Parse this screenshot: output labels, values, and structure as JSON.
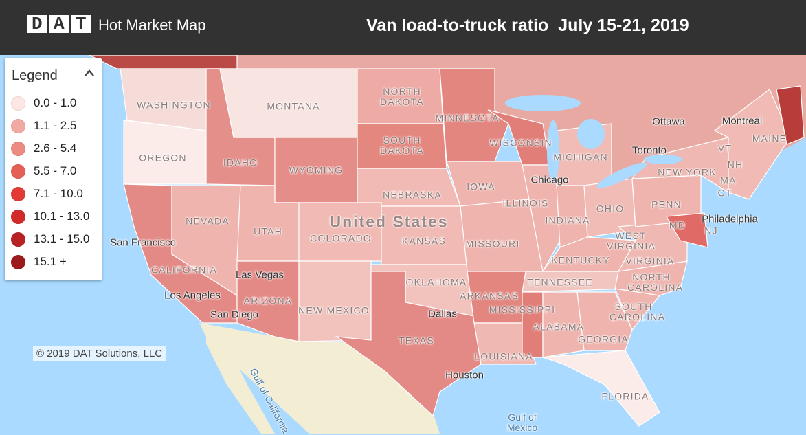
{
  "header": {
    "logo": "DAT",
    "app_name": "Hot Market Map",
    "title": "Van load-to-truck ratio  July 15-21, 2019"
  },
  "legend": {
    "title": "Legend",
    "items": [
      {
        "label": "0.0 - 1.0",
        "color": "#fde6e3"
      },
      {
        "label": "1.1 - 2.5",
        "color": "#f2a9a3"
      },
      {
        "label": "2.6 - 5.4",
        "color": "#ec8a84"
      },
      {
        "label": "5.5 - 7.0",
        "color": "#e65f57"
      },
      {
        "label": "7.1 - 10.0",
        "color": "#e33a35"
      },
      {
        "label": "10.1 - 13.0",
        "color": "#d12c2a"
      },
      {
        "label": "13.1 - 15.0",
        "color": "#b92224"
      },
      {
        "label": "15.1 +",
        "color": "#9c1a1c"
      }
    ]
  },
  "map": {
    "country_label": "United States",
    "states": [
      "WASHINGTON",
      "OREGON",
      "MONTANA",
      "IDAHO",
      "WYOMING",
      "NORTH DAKOTA",
      "SOUTH DAKOTA",
      "MINNESOTA",
      "WISCONSIN",
      "MICHIGAN",
      "IOWA",
      "NEBRASKA",
      "NEVADA",
      "UTAH",
      "COLORADO",
      "KANSAS",
      "MISSOURI",
      "ILLINOIS",
      "INDIANA",
      "OHIO",
      "CALIFORNIA",
      "ARIZONA",
      "NEW MEXICO",
      "OKLAHOMA",
      "ARKANSAS",
      "TENNESSEE",
      "KENTUCKY",
      "WEST VIRGINIA",
      "VIRGINIA",
      "NORTH CAROLINA",
      "SOUTH CAROLINA",
      "GEORGIA",
      "ALABAMA",
      "MISSISSIPPI",
      "LOUISIANA",
      "TEXAS",
      "FLORIDA",
      "PENN",
      "NEW YORK",
      "MAINE",
      "VT",
      "NH",
      "MA",
      "CT",
      "NJ",
      "MD"
    ],
    "cities": [
      "San Francisco",
      "Las Vegas",
      "Los Angeles",
      "San Diego",
      "Chicago",
      "Toronto",
      "Ottawa",
      "Montreal",
      "Philadelphia",
      "Dallas",
      "Houston"
    ],
    "water": [
      "Gulf of California",
      "Gulf of Mexico"
    ]
  },
  "footer": {
    "copyright": "© 2019 DAT Solutions, LLC"
  }
}
